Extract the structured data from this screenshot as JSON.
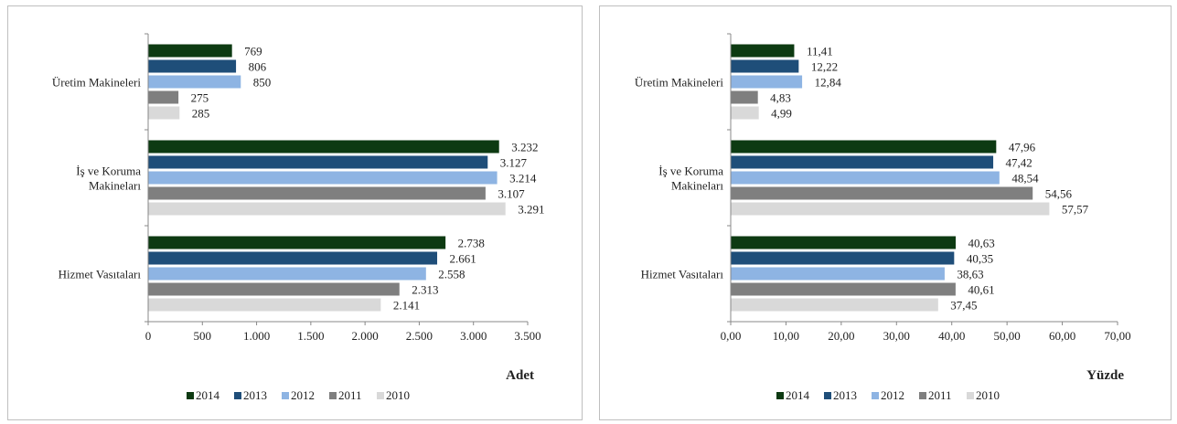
{
  "chart_data": [
    {
      "type": "bar",
      "orientation": "horizontal",
      "categories": [
        "Üretim Makineleri",
        "İş ve Koruma\nMakineları",
        "Hizmet Vasıtaları"
      ],
      "series": [
        {
          "name": "2014",
          "color": "#0d3a12",
          "values": [
            769,
            3232,
            2738
          ],
          "labels": [
            "769",
            "3.232",
            "2.738"
          ]
        },
        {
          "name": "2013",
          "color": "#1f4e79",
          "values": [
            806,
            3127,
            2661
          ],
          "labels": [
            "806",
            "3.127",
            "2.661"
          ]
        },
        {
          "name": "2012",
          "color": "#8eb4e3",
          "values": [
            850,
            3214,
            2558
          ],
          "labels": [
            "850",
            "3.214",
            "2.558"
          ]
        },
        {
          "name": "2011",
          "color": "#7f7f7f",
          "values": [
            275,
            3107,
            2313
          ],
          "labels": [
            "275",
            "3.107",
            "2.313"
          ]
        },
        {
          "name": "2010",
          "color": "#d9d9d9",
          "values": [
            285,
            3291,
            2141
          ],
          "labels": [
            "285",
            "3.291",
            "2.141"
          ]
        }
      ],
      "xlim": [
        0,
        3500
      ],
      "xticks": [
        0,
        500,
        1000,
        1500,
        2000,
        2500,
        3000,
        3500
      ],
      "xtick_labels": [
        "0",
        "500",
        "1.000",
        "1.500",
        "2.000",
        "2.500",
        "3.000",
        "3.500"
      ],
      "unit_label": "Adet",
      "legend": "bottom",
      "grid": false
    },
    {
      "type": "bar",
      "orientation": "horizontal",
      "categories": [
        "Üretim Makineleri",
        "İş ve Koruma\nMakineları",
        "Hizmet Vasıtaları"
      ],
      "series": [
        {
          "name": "2014",
          "color": "#0d3a12",
          "values": [
            11.41,
            47.96,
            40.63
          ],
          "labels": [
            "11,41",
            "47,96",
            "40,63"
          ]
        },
        {
          "name": "2013",
          "color": "#1f4e79",
          "values": [
            12.22,
            47.42,
            40.35
          ],
          "labels": [
            "12,22",
            "47,42",
            "40,35"
          ]
        },
        {
          "name": "2012",
          "color": "#8eb4e3",
          "values": [
            12.84,
            48.54,
            38.63
          ],
          "labels": [
            "12,84",
            "48,54",
            "38,63"
          ]
        },
        {
          "name": "2011",
          "color": "#7f7f7f",
          "values": [
            4.83,
            54.56,
            40.61
          ],
          "labels": [
            "4,83",
            "54,56",
            "40,61"
          ]
        },
        {
          "name": "2010",
          "color": "#d9d9d9",
          "values": [
            4.99,
            57.57,
            37.45
          ],
          "labels": [
            "4,99",
            "57,57",
            "37,45"
          ]
        }
      ],
      "xlim": [
        0,
        70
      ],
      "xticks": [
        0,
        10,
        20,
        30,
        40,
        50,
        60,
        70
      ],
      "xtick_labels": [
        "0,00",
        "10,00",
        "20,00",
        "30,00",
        "40,00",
        "50,00",
        "60,00",
        "70,00"
      ],
      "unit_label": "Yüzde",
      "legend": "bottom",
      "grid": false
    }
  ]
}
